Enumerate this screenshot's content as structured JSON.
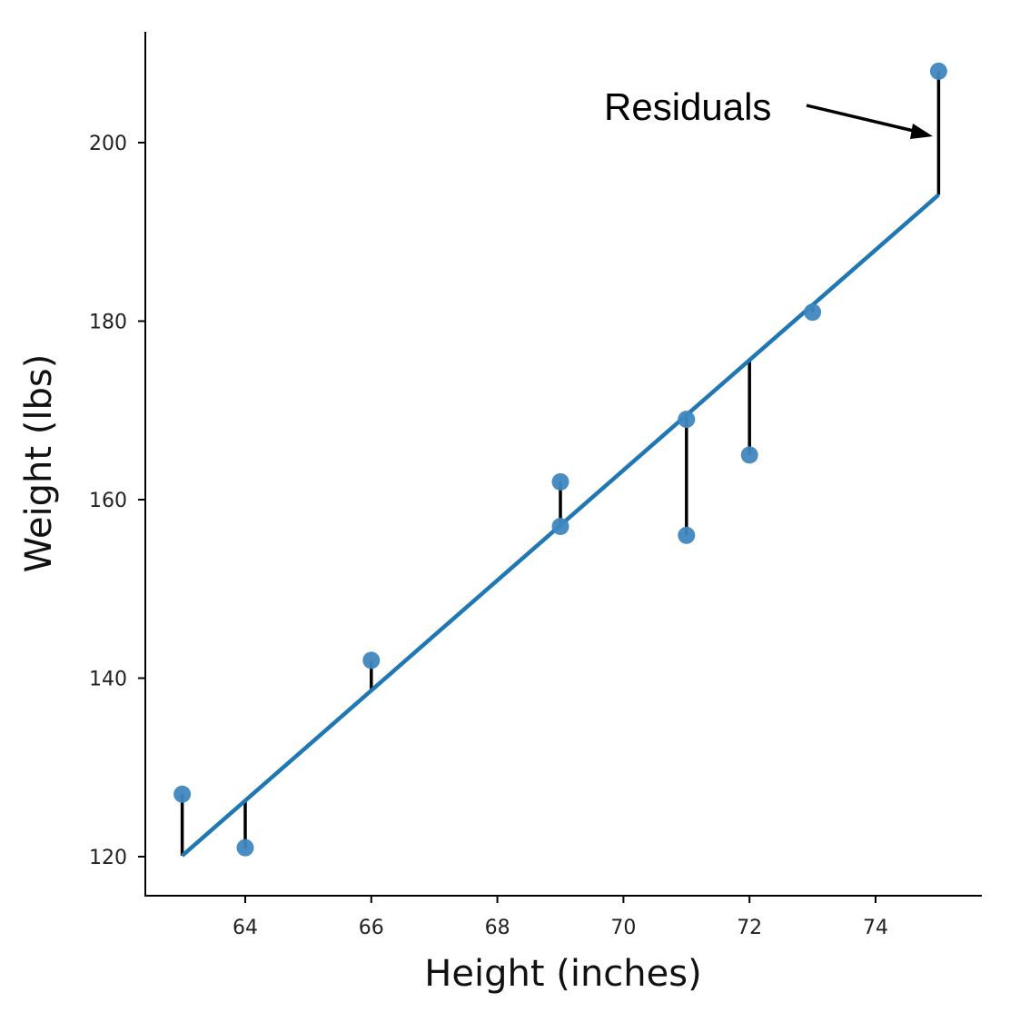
{
  "chart_data": {
    "type": "scatter",
    "title": "",
    "xlabel": "Height (inches)",
    "ylabel": "Weight (lbs)",
    "xlim": [
      62.4,
      75.7
    ],
    "ylim": [
      115.7,
      212.4
    ],
    "xticks": [
      64,
      66,
      68,
      70,
      72,
      74
    ],
    "yticks": [
      120,
      140,
      160,
      180,
      200
    ],
    "grid": false,
    "points": [
      {
        "x": 63,
        "y": 127
      },
      {
        "x": 64,
        "y": 121
      },
      {
        "x": 66,
        "y": 142
      },
      {
        "x": 69,
        "y": 162
      },
      {
        "x": 69,
        "y": 157
      },
      {
        "x": 71,
        "y": 169
      },
      {
        "x": 71,
        "y": 156
      },
      {
        "x": 72,
        "y": 165
      },
      {
        "x": 73,
        "y": 181
      },
      {
        "x": 75,
        "y": 208
      }
    ],
    "fit_line": {
      "intercept": -268.6,
      "slope": 6.17,
      "x_range": [
        63,
        75
      ]
    },
    "annotation": {
      "text": "Residuals",
      "points_to": {
        "x": 75,
        "y": 201
      }
    },
    "colors": {
      "points": "#3f87c0",
      "line": "#1f77b4",
      "residuals": "#000000"
    }
  }
}
